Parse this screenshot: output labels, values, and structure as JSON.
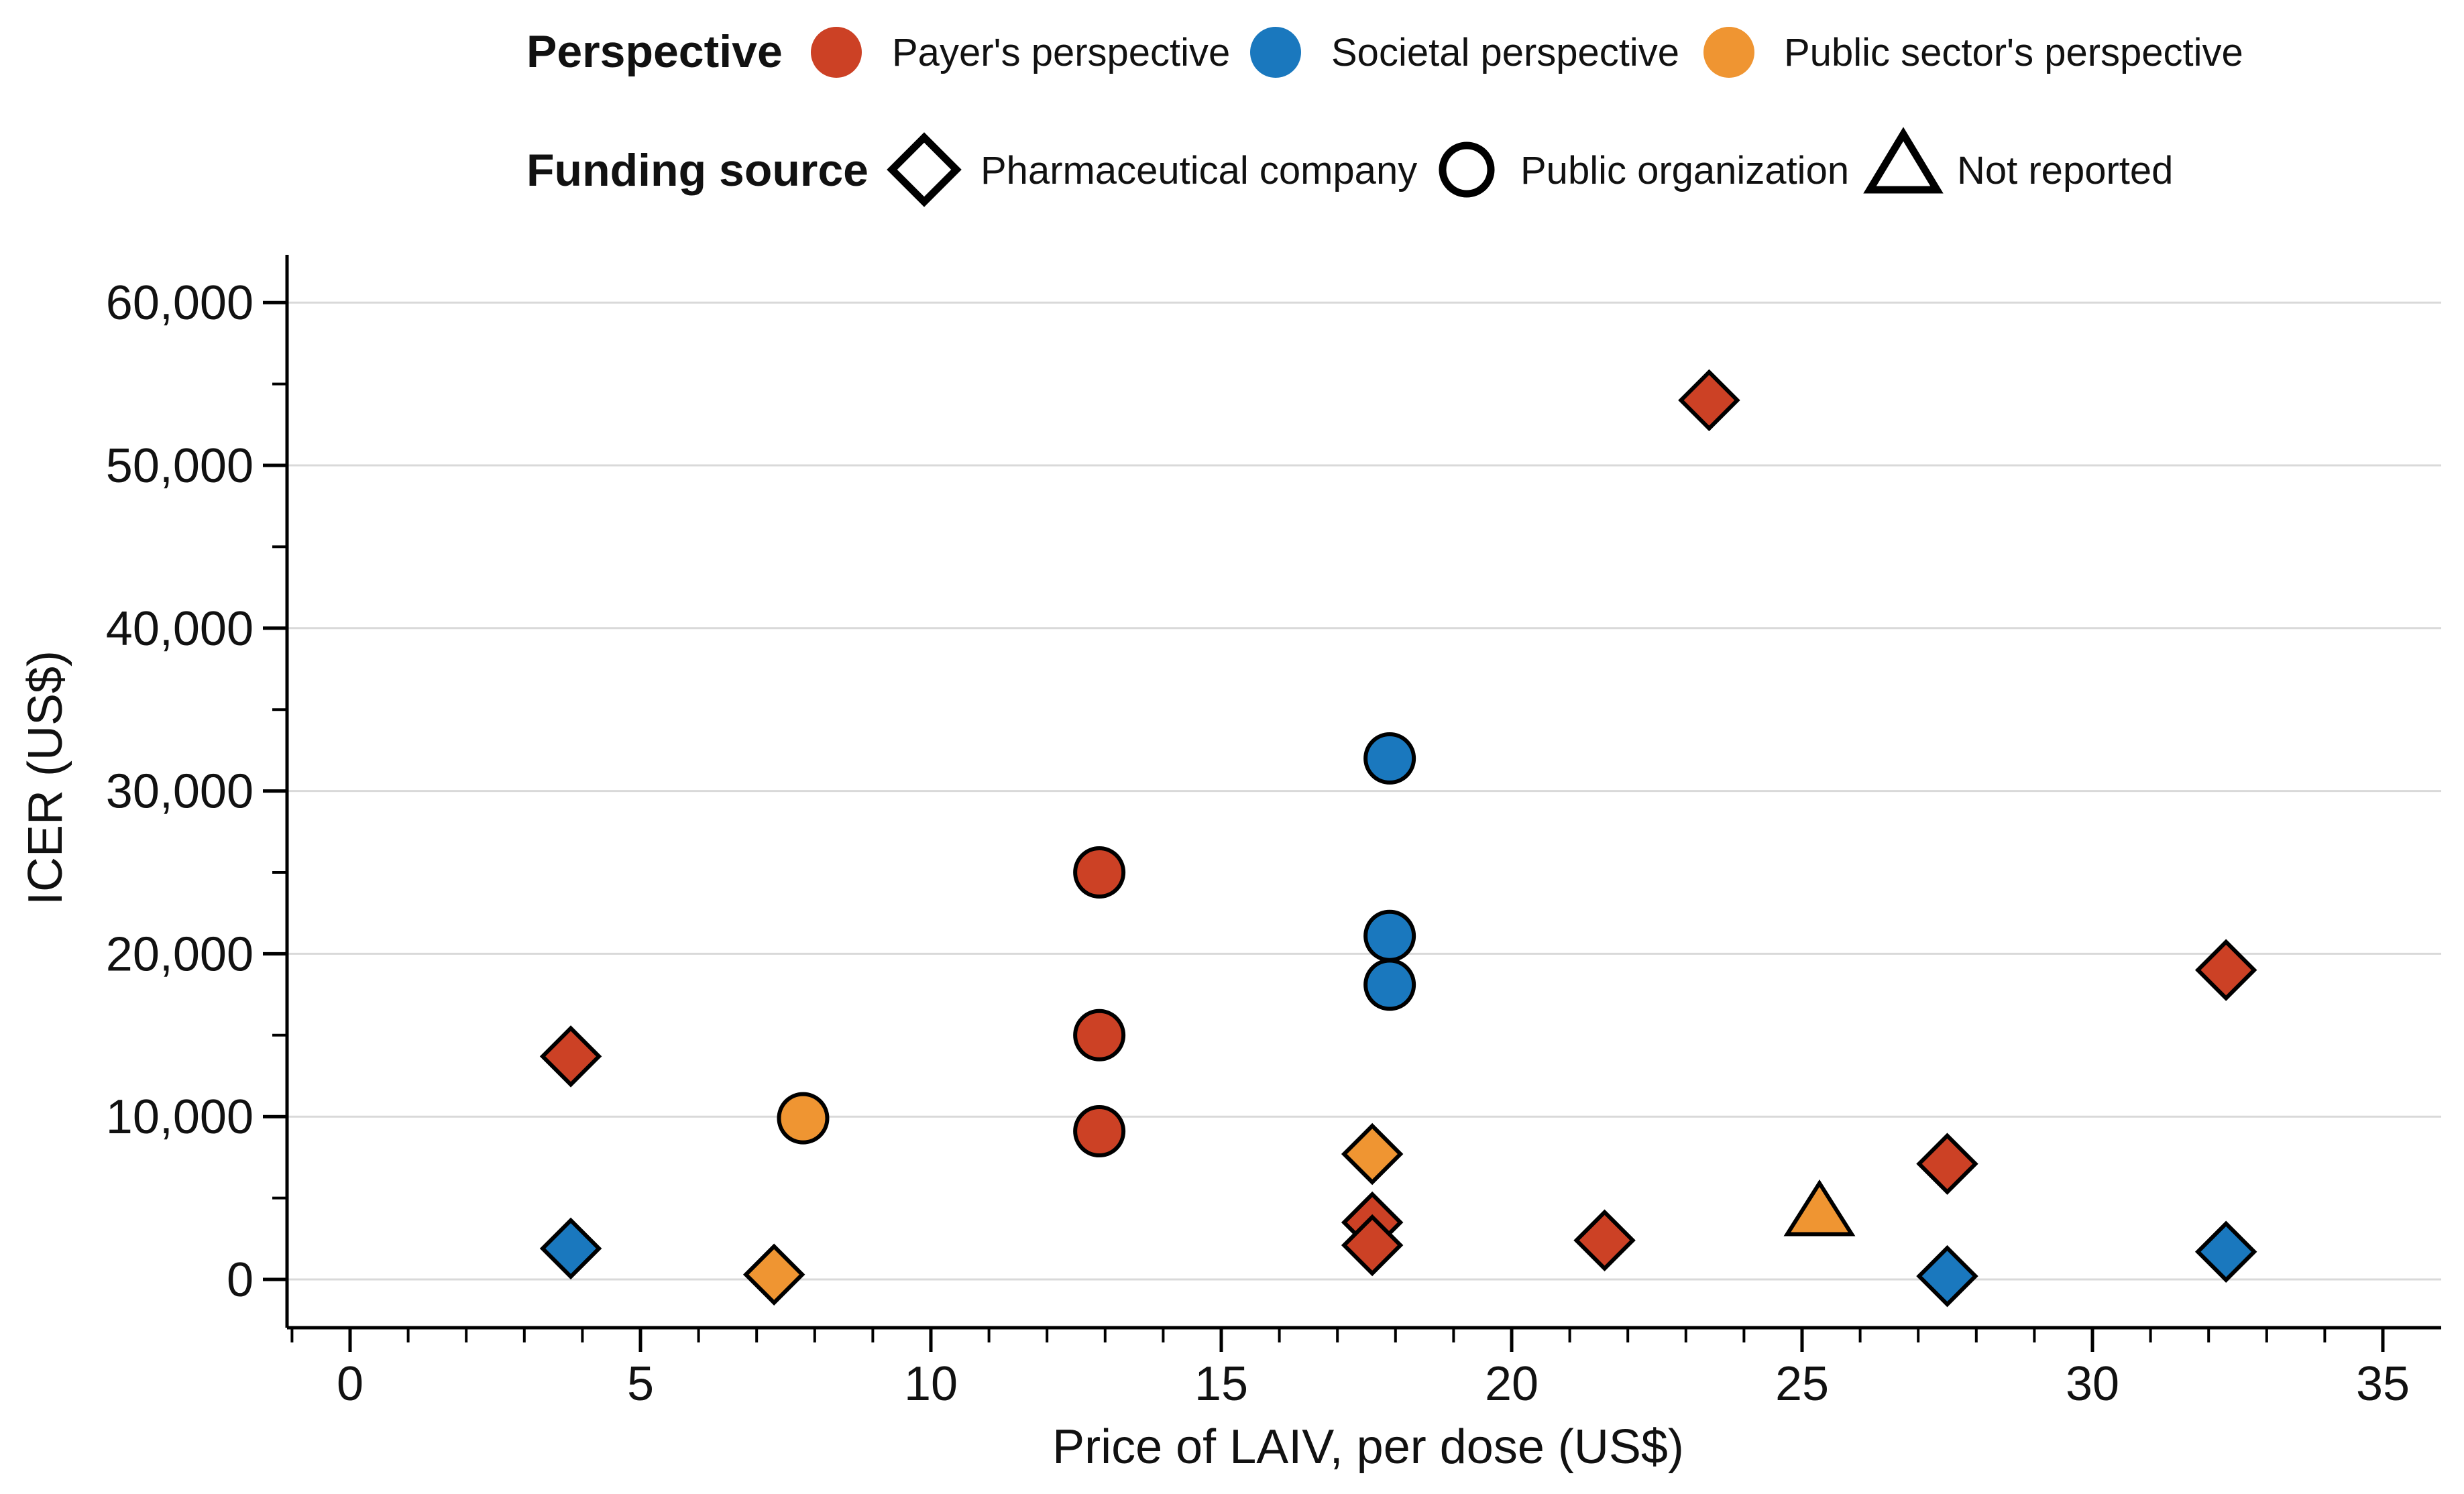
{
  "chart_data": {
    "type": "scatter",
    "title": "",
    "xlabel": "Price of LAIV, per dose (US$)",
    "ylabel": "ICER (US$)",
    "xlim": [
      -1,
      35.7
    ],
    "ylim": [
      -3000,
      63000
    ],
    "xticks": [
      0,
      5,
      10,
      15,
      20,
      25,
      30,
      35
    ],
    "xtick_labels": [
      "0",
      "5",
      "10",
      "15",
      "20",
      "25",
      "30",
      "35"
    ],
    "xminor_step": 1,
    "yticks": [
      0,
      10000,
      20000,
      30000,
      40000,
      50000,
      60000
    ],
    "ytick_labels": [
      "0",
      "10,000",
      "20,000",
      "30,000",
      "40,000",
      "50,000",
      "60,000"
    ],
    "yminor_step": 5000,
    "grid": "horizontal",
    "legend": {
      "perspective_title": "Perspective",
      "perspectives": [
        {
          "key": "payer",
          "label": "Payer's perspective",
          "color": "#cc4125"
        },
        {
          "key": "societal",
          "label": "Societal perspective",
          "color": "#1a78be"
        },
        {
          "key": "public",
          "label": "Public sector's perspective",
          "color": "#ef9532"
        }
      ],
      "funding_title": "Funding source",
      "funding": [
        {
          "key": "pharma",
          "label": "Pharmaceutical company",
          "shape": "diamond"
        },
        {
          "key": "publicorg",
          "label": "Public organization",
          "shape": "circle"
        },
        {
          "key": "notreported",
          "label": "Not reported",
          "shape": "triangle"
        }
      ]
    },
    "points": [
      {
        "x": 3.8,
        "y": 13700,
        "perspective": "payer",
        "funding": "pharma"
      },
      {
        "x": 3.8,
        "y": 1900,
        "perspective": "societal",
        "funding": "pharma"
      },
      {
        "x": 7.3,
        "y": 300,
        "perspective": "public",
        "funding": "pharma"
      },
      {
        "x": 7.8,
        "y": 9900,
        "perspective": "public",
        "funding": "publicorg"
      },
      {
        "x": 12.9,
        "y": 25000,
        "perspective": "payer",
        "funding": "publicorg"
      },
      {
        "x": 12.9,
        "y": 15000,
        "perspective": "payer",
        "funding": "publicorg"
      },
      {
        "x": 12.9,
        "y": 9100,
        "perspective": "payer",
        "funding": "publicorg"
      },
      {
        "x": 17.6,
        "y": 7700,
        "perspective": "public",
        "funding": "pharma"
      },
      {
        "x": 17.6,
        "y": 3500,
        "perspective": "payer",
        "funding": "pharma"
      },
      {
        "x": 17.6,
        "y": 2100,
        "perspective": "payer",
        "funding": "pharma"
      },
      {
        "x": 17.9,
        "y": 32000,
        "perspective": "societal",
        "funding": "publicorg"
      },
      {
        "x": 17.9,
        "y": 21100,
        "perspective": "societal",
        "funding": "publicorg"
      },
      {
        "x": 17.9,
        "y": 18100,
        "perspective": "societal",
        "funding": "publicorg"
      },
      {
        "x": 21.6,
        "y": 2400,
        "perspective": "payer",
        "funding": "pharma"
      },
      {
        "x": 23.4,
        "y": 54000,
        "perspective": "payer",
        "funding": "pharma"
      },
      {
        "x": 25.3,
        "y": 4100,
        "perspective": "public",
        "funding": "notreported"
      },
      {
        "x": 27.5,
        "y": 7100,
        "perspective": "payer",
        "funding": "pharma"
      },
      {
        "x": 27.5,
        "y": 200,
        "perspective": "societal",
        "funding": "pharma"
      },
      {
        "x": 32.3,
        "y": 19000,
        "perspective": "payer",
        "funding": "pharma"
      },
      {
        "x": 32.3,
        "y": 1700,
        "perspective": "societal",
        "funding": "pharma"
      }
    ]
  }
}
